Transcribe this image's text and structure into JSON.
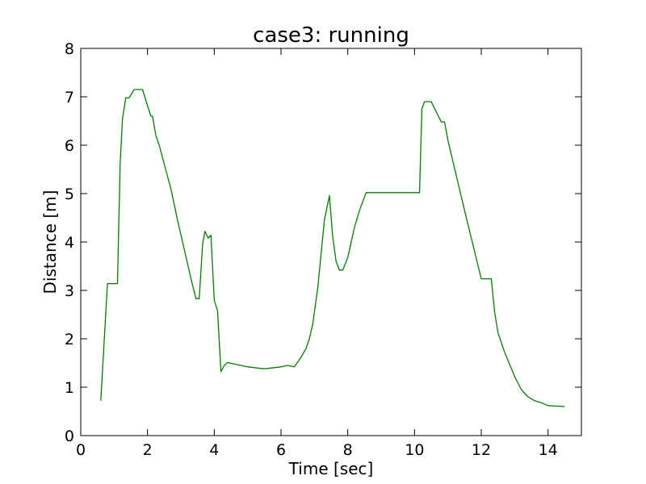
{
  "chart_data": {
    "type": "line",
    "title": "case3: running",
    "xlabel": "Time [sec]",
    "ylabel": "Distance [m]",
    "xlim": [
      0,
      15
    ],
    "ylim": [
      0,
      8
    ],
    "xticks": [
      0,
      2,
      4,
      6,
      8,
      10,
      12,
      14
    ],
    "yticks": [
      0,
      1,
      2,
      3,
      4,
      5,
      6,
      7,
      8
    ],
    "xtick_labels": [
      "0",
      "2",
      "4",
      "6",
      "8",
      "10",
      "12",
      "14"
    ],
    "ytick_labels": [
      "0",
      "1",
      "2",
      "3",
      "4",
      "5",
      "6",
      "7",
      "8"
    ],
    "grid": false,
    "line_color": "#007f00",
    "series": [
      {
        "x": [
          0.6,
          0.8,
          1.1,
          1.18,
          1.25,
          1.35,
          1.45,
          1.6,
          1.85,
          2.1,
          2.15,
          2.25,
          2.35,
          2.7,
          2.9,
          3.3,
          3.45,
          3.55,
          3.65,
          3.72,
          3.82,
          3.9,
          4.0,
          4.1,
          4.2,
          4.3,
          4.4,
          4.6,
          5.0,
          5.5,
          6.0,
          6.2,
          6.4,
          6.6,
          6.75,
          6.85,
          6.95,
          7.1,
          7.3,
          7.45,
          7.55,
          7.65,
          7.75,
          7.85,
          8.0,
          8.2,
          8.35,
          8.55,
          9.0,
          9.5,
          10.0,
          10.15,
          10.22,
          10.3,
          10.5,
          10.8,
          10.9,
          11.0,
          11.5,
          12.0,
          12.3,
          12.4,
          12.5,
          12.7,
          13.0,
          13.2,
          13.4,
          13.6,
          13.8,
          14.0,
          14.5
        ],
        "y": [
          0.72,
          3.14,
          3.14,
          5.6,
          6.55,
          6.98,
          6.98,
          7.15,
          7.15,
          6.6,
          6.6,
          6.2,
          6.0,
          5.1,
          4.45,
          3.25,
          2.83,
          2.83,
          3.95,
          4.22,
          4.08,
          4.14,
          2.8,
          2.57,
          1.32,
          1.45,
          1.51,
          1.48,
          1.42,
          1.38,
          1.42,
          1.45,
          1.42,
          1.62,
          1.8,
          2.0,
          2.3,
          3.05,
          4.45,
          4.96,
          4.1,
          3.6,
          3.42,
          3.42,
          3.68,
          4.3,
          4.65,
          5.02,
          5.02,
          5.02,
          5.02,
          5.02,
          6.75,
          6.9,
          6.9,
          6.48,
          6.48,
          6.1,
          4.65,
          3.24,
          3.24,
          2.55,
          2.13,
          1.72,
          1.22,
          0.95,
          0.8,
          0.72,
          0.68,
          0.62,
          0.6
        ]
      }
    ]
  }
}
